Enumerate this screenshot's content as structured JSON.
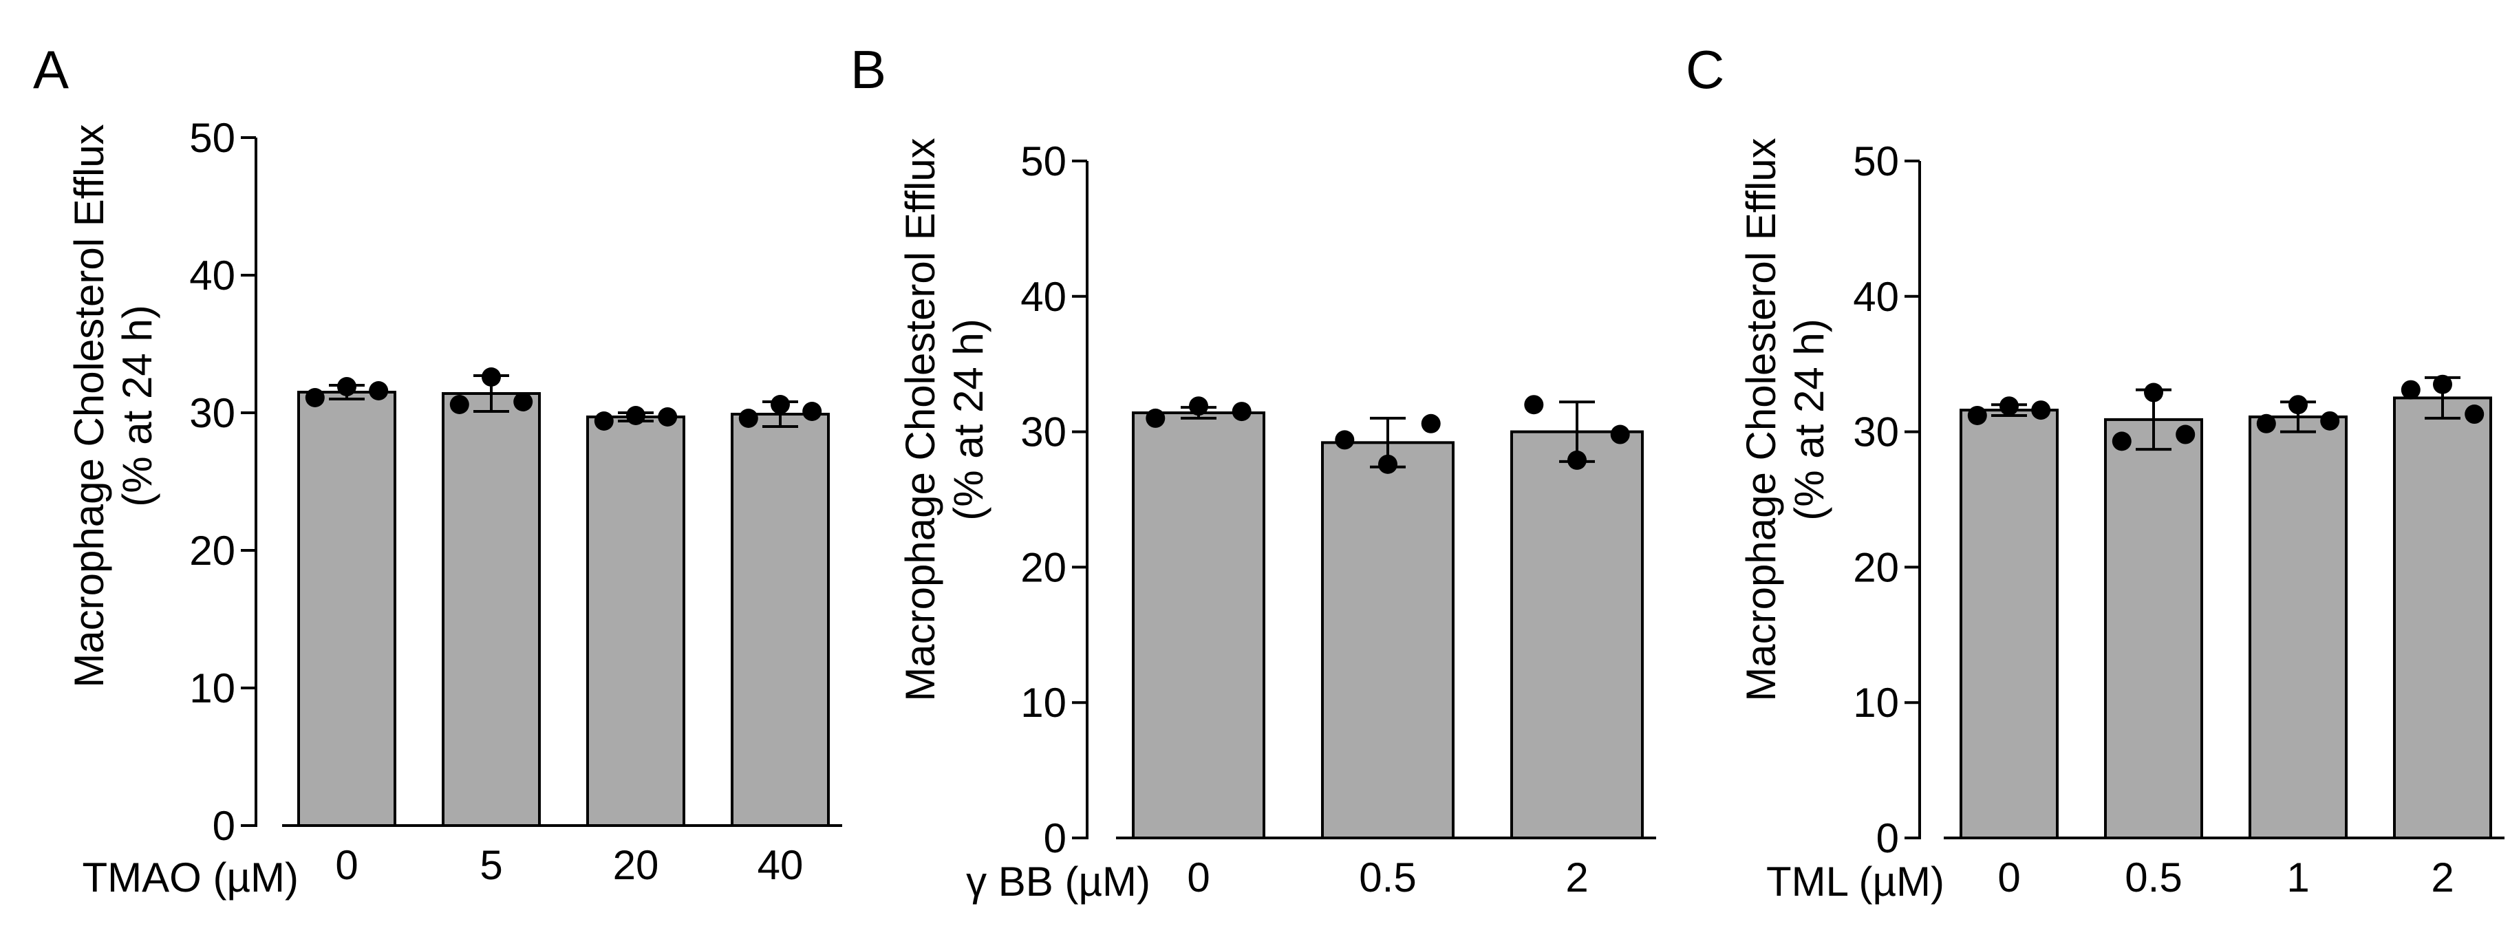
{
  "figure": {
    "colors": {
      "bar_fill": "#aaaaaa",
      "bar_stroke": "#000000",
      "axis": "#000000",
      "point": "#000000"
    }
  },
  "chart_data": [
    {
      "type": "bar",
      "panel": "A",
      "title": "",
      "xlabel": "TMAO (µM)",
      "ylabel_line1": "Macrophage Cholesterol Efflux",
      "ylabel_line2": "(% at 24 h)",
      "ylim": [
        0,
        50
      ],
      "yticks": [
        0,
        10,
        20,
        30,
        40,
        50
      ],
      "categories": [
        "0",
        "5",
        "20",
        "40"
      ],
      "values": [
        31.5,
        31.4,
        29.7,
        29.9
      ],
      "errors": [
        0.5,
        1.3,
        0.3,
        0.9
      ],
      "points": [
        [
          31.1,
          31.9,
          31.6
        ],
        [
          30.6,
          32.6,
          30.8
        ],
        [
          29.4,
          29.8,
          29.7
        ],
        [
          29.6,
          30.6,
          30.1
        ]
      ]
    },
    {
      "type": "bar",
      "panel": "B",
      "title": "",
      "xlabel": "γ BB (µM)",
      "ylabel_line1": "Macrophage Cholesterol Efflux",
      "ylabel_line2": "(% at 24 h)",
      "ylim": [
        0,
        50
      ],
      "yticks": [
        0,
        10,
        20,
        30,
        40,
        50
      ],
      "categories": [
        "0",
        "0.5",
        "2"
      ],
      "values": [
        31.4,
        29.2,
        30.0
      ],
      "errors": [
        0.4,
        1.8,
        2.2
      ],
      "points": [
        [
          31.0,
          31.9,
          31.5
        ],
        [
          29.4,
          27.6,
          30.6
        ],
        [
          32.0,
          27.9,
          29.8
        ]
      ]
    },
    {
      "type": "bar",
      "panel": "C",
      "title": "",
      "xlabel": "TML (µM)",
      "ylabel_line1": "Macrophage Cholesterol Efflux",
      "ylabel_line2": "(% at 24 h)",
      "ylim": [
        0,
        50
      ],
      "yticks": [
        0,
        10,
        20,
        30,
        40,
        50
      ],
      "categories": [
        "0",
        "0.5",
        "1",
        "2"
      ],
      "values": [
        31.6,
        30.9,
        31.1,
        32.5
      ],
      "errors": [
        0.4,
        2.2,
        1.1,
        1.5
      ],
      "points": [
        [
          31.2,
          31.9,
          31.6
        ],
        [
          29.3,
          32.9,
          29.8
        ],
        [
          30.6,
          32.0,
          30.8
        ],
        [
          33.1,
          33.5,
          31.3
        ]
      ]
    }
  ]
}
